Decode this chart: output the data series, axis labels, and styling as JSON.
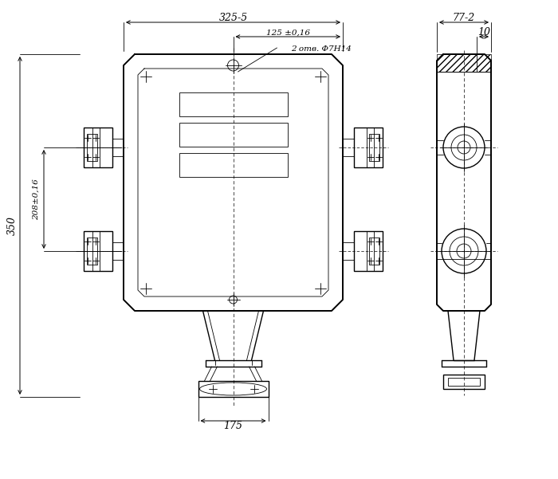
{
  "bg_color": "#ffffff",
  "line_color": "#000000",
  "fig_width": 7.0,
  "fig_height": 6.01,
  "dpi": 100,
  "annotations": {
    "dim_325": "325-5",
    "dim_125": "125 ±0,16",
    "dim_holes": "2 отв. Φ7Н14",
    "dim_208": "208±0,16",
    "dim_350": "350",
    "dim_175": "175",
    "dim_77": "77-2",
    "dim_10": "10"
  }
}
